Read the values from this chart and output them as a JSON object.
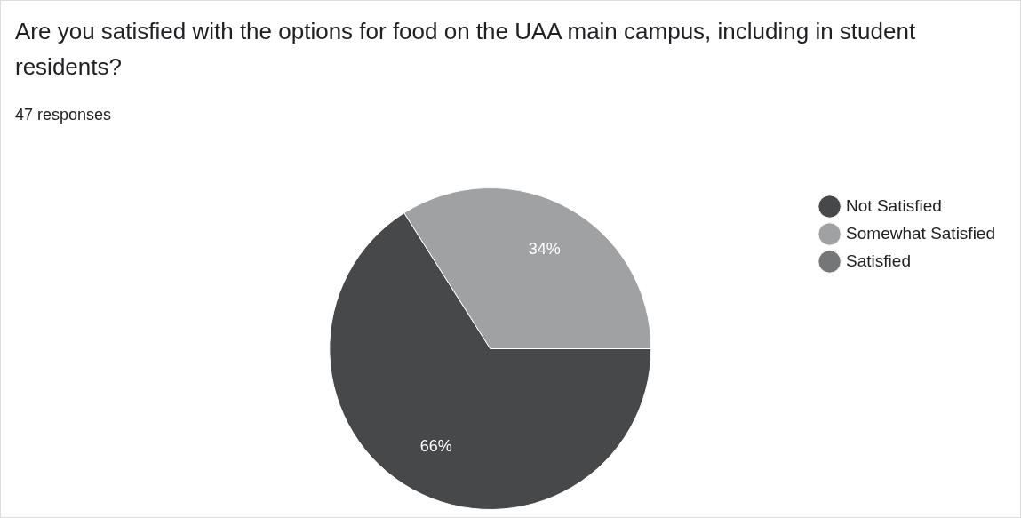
{
  "chart_data": {
    "type": "pie",
    "title": "Are you satisfied with the options for food on the UAA main campus, including in student residents?",
    "subtitle": "47 responses",
    "categories": [
      "Not Satisfied",
      "Somewhat Satisfied",
      "Satisfied"
    ],
    "values": [
      66,
      34,
      0
    ],
    "colors": [
      "#47484a",
      "#a0a1a3",
      "#757678"
    ],
    "value_labels": [
      "66%",
      "34%",
      null
    ],
    "legend": "right"
  }
}
